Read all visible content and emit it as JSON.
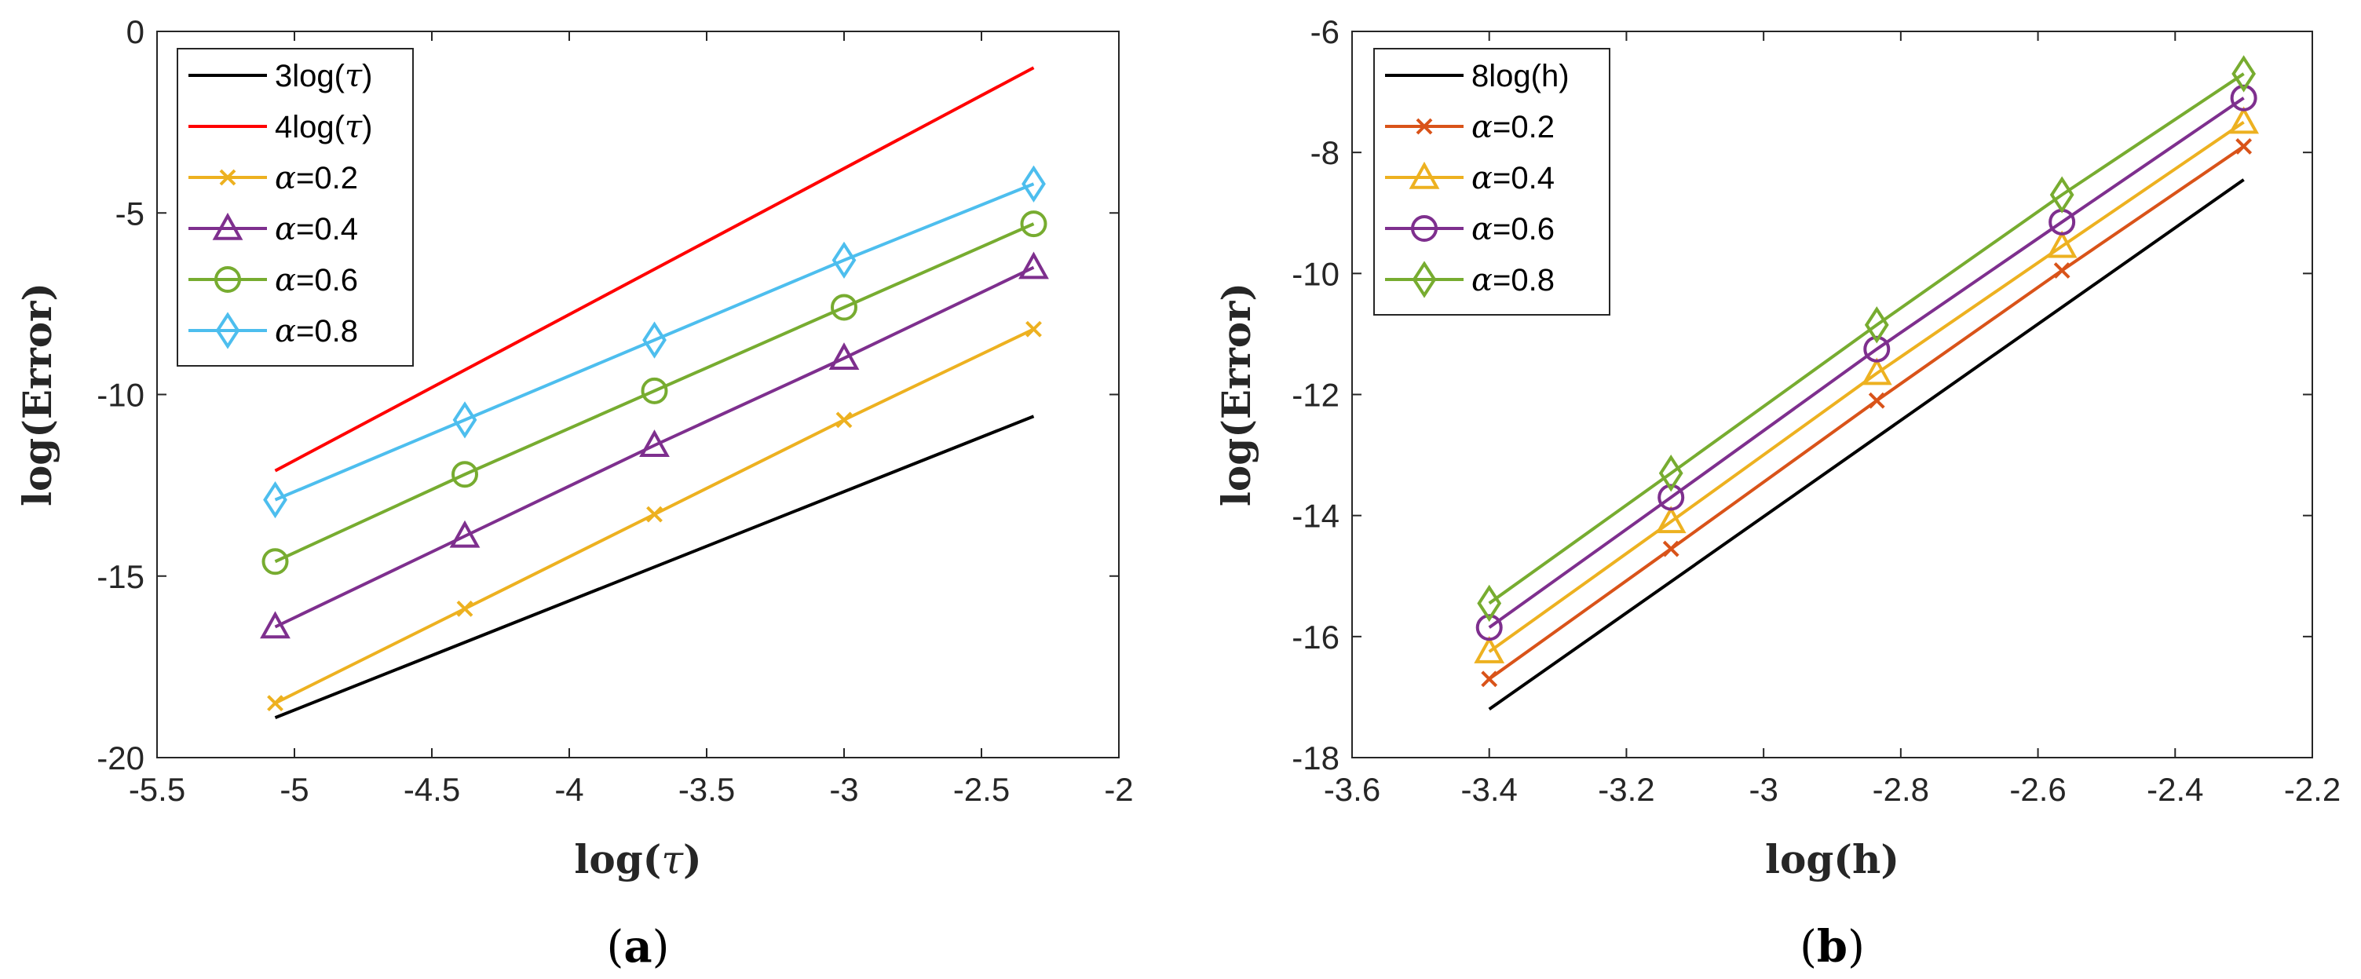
{
  "chart_data": [
    {
      "type": "line",
      "panel_label": "a",
      "xlabel": "log(τ)",
      "ylabel": "log(Error)",
      "xlim": [
        -5.5,
        -2
      ],
      "ylim": [
        -20,
        0
      ],
      "xticks": [
        "-5.5",
        "-5",
        "-4.5",
        "-4",
        "-3.5",
        "-3",
        "-2.5",
        "-2"
      ],
      "yticks": [
        "0",
        "-5",
        "-10",
        "-15",
        "-20"
      ],
      "xtick_values": [
        -5.5,
        -5,
        -4.5,
        -4,
        -3.5,
        -3,
        -2.5,
        -2
      ],
      "ytick_values": [
        0,
        -5,
        -10,
        -15,
        -20
      ],
      "grid": false,
      "legend_position": "top-left",
      "series": [
        {
          "name": "3log(τ)",
          "color": "#000000",
          "marker": "none",
          "x": [
            -5.07,
            -2.31
          ],
          "y": [
            -18.9,
            -10.6
          ]
        },
        {
          "name": "4log(τ)",
          "color": "#ff0000",
          "marker": "none",
          "x": [
            -5.07,
            -2.31
          ],
          "y": [
            -12.1,
            -1.0
          ]
        },
        {
          "name": "α=0.2",
          "color": "#edb120",
          "marker": "x",
          "x": [
            -5.07,
            -4.38,
            -3.69,
            -3.0,
            -2.31
          ],
          "y": [
            -18.5,
            -15.9,
            -13.3,
            -10.7,
            -8.2
          ]
        },
        {
          "name": "α=0.4",
          "color": "#7e2f8e",
          "marker": "triangle",
          "x": [
            -5.07,
            -4.38,
            -3.69,
            -3.0,
            -2.31
          ],
          "y": [
            -16.4,
            -13.9,
            -11.4,
            -9.0,
            -6.5
          ]
        },
        {
          "name": "α=0.6",
          "color": "#77ac30",
          "marker": "circle",
          "x": [
            -5.07,
            -4.38,
            -3.69,
            -3.0,
            -2.31
          ],
          "y": [
            -14.6,
            -12.2,
            -9.9,
            -7.6,
            -5.3
          ]
        },
        {
          "name": "α=0.8",
          "color": "#4dbeee",
          "marker": "diamond",
          "x": [
            -5.07,
            -4.38,
            -3.69,
            -3.0,
            -2.31
          ],
          "y": [
            -12.9,
            -10.7,
            -8.5,
            -6.3,
            -4.2
          ]
        }
      ]
    },
    {
      "type": "line",
      "panel_label": "b",
      "xlabel": "log(h)",
      "ylabel": "log(Error)",
      "xlim": [
        -3.6,
        -2.2
      ],
      "ylim": [
        -18,
        -6
      ],
      "xticks": [
        "-3.6",
        "-3.4",
        "-3.2",
        "-3",
        "-2.8",
        "-2.6",
        "-2.4",
        "-2.2"
      ],
      "yticks": [
        "-6",
        "-8",
        "-10",
        "-12",
        "-14",
        "-16",
        "-18"
      ],
      "xtick_values": [
        -3.6,
        -3.4,
        -3.2,
        -3.0,
        -2.8,
        -2.6,
        -2.4,
        -2.2
      ],
      "ytick_values": [
        -6,
        -8,
        -10,
        -12,
        -14,
        -16,
        -18
      ],
      "grid": false,
      "legend_position": "top-left",
      "series": [
        {
          "name": "8log(h)",
          "color": "#000000",
          "marker": "none",
          "x": [
            -3.4,
            -2.3
          ],
          "y": [
            -17.2,
            -8.45
          ]
        },
        {
          "name": "α=0.2",
          "color": "#d95319",
          "marker": "x",
          "x": [
            -3.4,
            -3.135,
            -2.835,
            -2.565,
            -2.3
          ],
          "y": [
            -16.7,
            -14.55,
            -12.1,
            -9.95,
            -7.9
          ]
        },
        {
          "name": "α=0.4",
          "color": "#edb120",
          "marker": "triangle",
          "x": [
            -3.4,
            -3.135,
            -2.835,
            -2.565,
            -2.3
          ],
          "y": [
            -16.25,
            -14.1,
            -11.65,
            -9.55,
            -7.5
          ]
        },
        {
          "name": "α=0.6",
          "color": "#7e2f8e",
          "marker": "circle",
          "x": [
            -3.4,
            -3.135,
            -2.835,
            -2.565,
            -2.3
          ],
          "y": [
            -15.85,
            -13.7,
            -11.25,
            -9.15,
            -7.1
          ]
        },
        {
          "name": "α=0.8",
          "color": "#77ac30",
          "marker": "diamond",
          "x": [
            -3.4,
            -3.135,
            -2.835,
            -2.565,
            -2.3
          ],
          "y": [
            -15.45,
            -13.3,
            -10.85,
            -8.7,
            -6.7
          ]
        }
      ]
    }
  ]
}
